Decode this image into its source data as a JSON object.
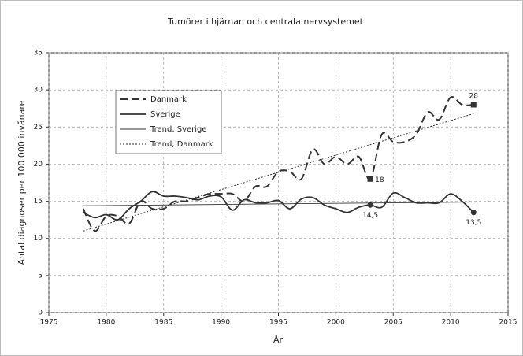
{
  "chart_data": {
    "type": "line",
    "title": "Tumörer i hjärnan och centrala nervsystemet",
    "x_label": "År",
    "y_label": "Antal diagnoser per 100 000 invånare",
    "xlim": [
      1975,
      2015
    ],
    "xticks": [
      1975,
      1980,
      1985,
      1990,
      1995,
      2000,
      2005,
      2010,
      2015
    ],
    "ylim": [
      0,
      35
    ],
    "yticks": [
      0,
      5,
      10,
      15,
      20,
      25,
      30,
      35
    ],
    "grid": true,
    "series": [
      {
        "name": "Danmark",
        "color": "#333333",
        "width": 2,
        "dash": "dashed",
        "smooth": true,
        "marker": "square",
        "x": [
          1978,
          1979,
          1980,
          1981,
          1982,
          1983,
          1984,
          1985,
          1986,
          1987,
          1988,
          1989,
          1990,
          1991,
          1992,
          1993,
          1994,
          1995,
          1996,
          1997,
          1998,
          1999,
          2000,
          2001,
          2002,
          2003,
          2004,
          2005,
          2006,
          2007,
          2008,
          2009,
          2010,
          2011,
          2012
        ],
        "values": [
          14,
          11,
          13,
          13,
          12,
          15,
          14,
          14,
          15,
          15,
          15.5,
          16,
          16,
          16,
          15,
          17,
          17,
          19,
          19,
          18,
          22,
          20,
          21,
          20,
          21,
          18,
          24,
          23,
          23,
          24,
          27,
          26,
          29,
          28,
          28
        ],
        "value_labels": [
          null,
          null,
          null,
          null,
          null,
          null,
          null,
          null,
          null,
          null,
          null,
          null,
          null,
          null,
          null,
          null,
          null,
          null,
          null,
          null,
          null,
          null,
          null,
          null,
          null,
          "18",
          null,
          null,
          null,
          null,
          null,
          null,
          null,
          null,
          "28"
        ]
      },
      {
        "name": "Sverige",
        "color": "#333333",
        "width": 1.8,
        "dash": "solid",
        "smooth": true,
        "marker": "circle",
        "x": [
          1978,
          1979,
          1980,
          1981,
          1982,
          1983,
          1984,
          1985,
          1986,
          1987,
          1988,
          1989,
          1990,
          1991,
          1992,
          1993,
          1994,
          1995,
          1996,
          1997,
          1998,
          1999,
          2000,
          2001,
          2002,
          2003,
          2004,
          2005,
          2006,
          2007,
          2008,
          2009,
          2010,
          2011,
          2012
        ],
        "values": [
          13.5,
          12.8,
          13.2,
          12.5,
          14,
          15,
          16.3,
          15.7,
          15.7,
          15.5,
          15.2,
          15.7,
          15.6,
          13.8,
          15.2,
          14.8,
          14.8,
          15.1,
          14,
          15.3,
          15.5,
          14.5,
          14,
          13.5,
          14.2,
          14.5,
          14.2,
          16.1,
          15.5,
          14.8,
          14.8,
          14.8,
          16,
          15,
          13.5
        ],
        "value_labels": [
          null,
          null,
          null,
          null,
          null,
          null,
          null,
          null,
          null,
          null,
          null,
          null,
          null,
          null,
          null,
          null,
          null,
          null,
          null,
          null,
          null,
          null,
          null,
          null,
          null,
          "14,5",
          null,
          null,
          null,
          null,
          null,
          null,
          null,
          null,
          "13,5"
        ]
      },
      {
        "name": "Trend, Sverige",
        "color": "#333333",
        "width": 0.9,
        "dash": "solid",
        "smooth": false,
        "x": [
          1978,
          2012
        ],
        "values": [
          14.4,
          14.9
        ]
      },
      {
        "name": "Trend, Danmark",
        "color": "#333333",
        "width": 1,
        "dash": "dotted",
        "smooth": false,
        "x": [
          1978,
          2012
        ],
        "values": [
          11,
          26.8
        ]
      }
    ]
  }
}
